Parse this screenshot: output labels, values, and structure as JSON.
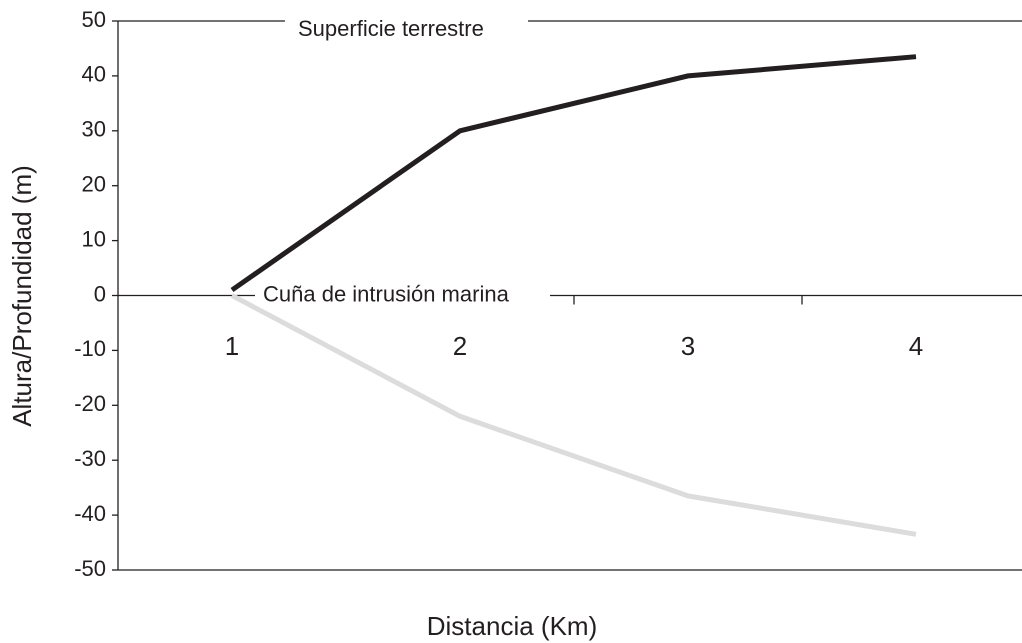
{
  "chart_data": {
    "type": "line",
    "x_label": "Distancia (Km)",
    "y_label": "Altura/Profundidad (m)",
    "categories": [
      "1",
      "2",
      "3",
      "4"
    ],
    "series": [
      {
        "name": "Superficie terrestre",
        "color": "#231f20",
        "values": [
          1,
          30,
          40,
          43.5
        ]
      },
      {
        "name": "Cuña de intrusión marina",
        "color": "#dcdcdc",
        "values": [
          0,
          -22,
          -36.5,
          -43.5
        ]
      }
    ],
    "ylim": [
      -50,
      50
    ],
    "yticks": [
      -50,
      -40,
      -30,
      -20,
      -10,
      0,
      10,
      20,
      30,
      40,
      50
    ]
  }
}
